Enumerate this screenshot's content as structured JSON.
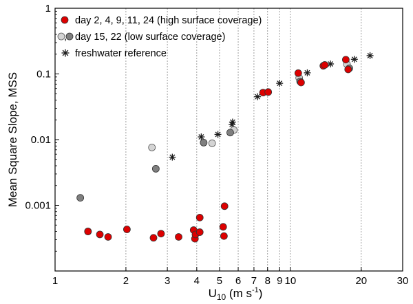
{
  "chart_data": {
    "type": "scatter",
    "xscale": "log",
    "yscale": "log",
    "xlim": [
      1,
      30
    ],
    "ylim": [
      0.0001,
      1
    ],
    "xlabel": {
      "main": "U",
      "sub": "10",
      "unit_pre": " (m s",
      "unit_sup": "-1",
      "unit_post": ")"
    },
    "ylabel": "Mean Square Slope, MSS",
    "x_ticks": [
      {
        "value": 1,
        "label": "1"
      },
      {
        "value": 2,
        "label": "2"
      },
      {
        "value": 3,
        "label": "3"
      },
      {
        "value": 4,
        "label": "4"
      },
      {
        "value": 5,
        "label": "5"
      },
      {
        "value": 6,
        "label": "6"
      },
      {
        "value": 7,
        "label": "7"
      },
      {
        "value": 8,
        "label": "8"
      },
      {
        "value": 9,
        "label": "9"
      },
      {
        "value": 10,
        "label": "10"
      },
      {
        "value": 20,
        "label": "20"
      },
      {
        "value": 30,
        "label": "30"
      }
    ],
    "y_ticks": [
      {
        "value": 0.001,
        "label": "0.001"
      },
      {
        "value": 0.01,
        "label": "0.01"
      },
      {
        "value": 0.1,
        "label": "0.1"
      },
      {
        "value": 1,
        "label": "1"
      }
    ],
    "vertical_gridlines": [
      2,
      3,
      4,
      5,
      6,
      7,
      8,
      9,
      10,
      20
    ],
    "grid_style": "dashed",
    "legend_position": "top-left",
    "colors": {
      "high": "#dd0000",
      "low_light": "#d4d4d4",
      "low_dark": "#7f7f7f",
      "reference": "#1a1a1a",
      "grid": "#888888"
    },
    "series": [
      {
        "name": "day 2, 4, 9, 11, 24 (high surface coverage)",
        "marker": "circle",
        "points": [
          [
            1.38,
            0.0004
          ],
          [
            1.55,
            0.00036
          ],
          [
            1.68,
            0.00033
          ],
          [
            2.02,
            0.00043
          ],
          [
            2.62,
            0.00032
          ],
          [
            2.82,
            0.00037
          ],
          [
            3.35,
            0.00033
          ],
          [
            3.88,
            0.00042
          ],
          [
            3.93,
            0.00031
          ],
          [
            3.95,
            0.00036
          ],
          [
            4.12,
            0.00039
          ],
          [
            4.12,
            0.00065
          ],
          [
            5.18,
            0.00047
          ],
          [
            5.22,
            0.00034
          ],
          [
            5.25,
            0.00097
          ],
          [
            7.65,
            0.052
          ],
          [
            8.05,
            0.053
          ],
          [
            10.8,
            0.103
          ],
          [
            11.1,
            0.074
          ],
          [
            13.8,
            0.133
          ],
          [
            14.0,
            0.137
          ],
          [
            17.2,
            0.165
          ],
          [
            17.6,
            0.117
          ]
        ]
      },
      {
        "name": "day 15, 22 (low surface coverage)",
        "marker": "circle-pair",
        "light_points": [
          [
            1.38,
            0.0004
          ],
          [
            2.58,
            0.0076
          ],
          [
            4.65,
            0.0088
          ],
          [
            5.75,
            0.014
          ],
          [
            10.9,
            0.087
          ],
          [
            17.4,
            0.14
          ]
        ],
        "dark_points": [
          [
            1.28,
            0.0013
          ],
          [
            2.68,
            0.0036
          ],
          [
            4.28,
            0.009
          ],
          [
            5.55,
            0.0128
          ],
          [
            11.0,
            0.077
          ],
          [
            17.8,
            0.122
          ]
        ]
      },
      {
        "name": "freshwater reference",
        "marker": "asterisk",
        "points": [
          [
            3.15,
            0.0054
          ],
          [
            4.18,
            0.011
          ],
          [
            4.92,
            0.012
          ],
          [
            5.65,
            0.017
          ],
          [
            5.68,
            0.0185
          ],
          [
            7.25,
            0.045
          ],
          [
            9.0,
            0.072
          ],
          [
            11.8,
            0.104
          ],
          [
            14.8,
            0.142
          ],
          [
            18.7,
            0.167
          ],
          [
            21.8,
            0.19
          ]
        ]
      }
    ]
  }
}
